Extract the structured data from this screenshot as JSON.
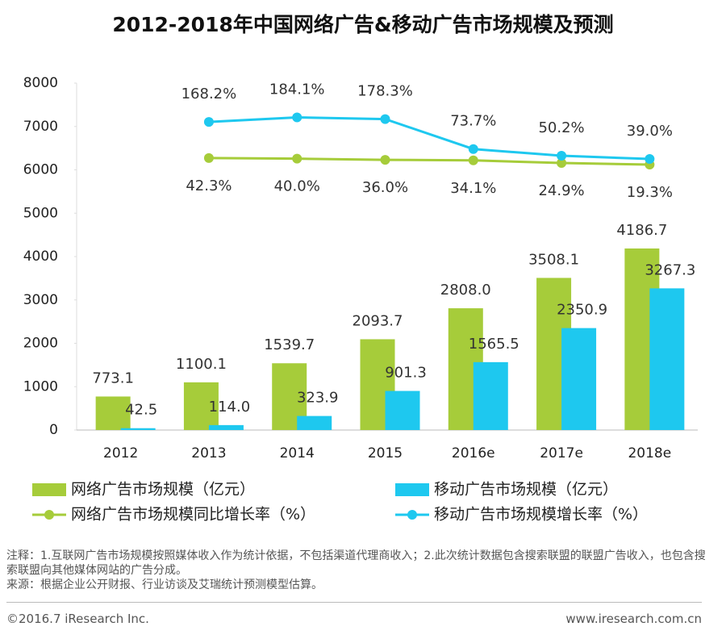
{
  "chart_data": {
    "type": "bar",
    "title": "2012-2018年中国网络广告&移动广告市场规模及预测",
    "categories": [
      "2012",
      "2013",
      "2014",
      "2015",
      "2016e",
      "2017e",
      "2018e"
    ],
    "series": [
      {
        "name": "网络广告市场规模（亿元）",
        "type": "bar",
        "color": "#a6cc3a",
        "values": [
          773.1,
          1100.1,
          1539.7,
          2093.7,
          2808.0,
          3508.1,
          4186.7
        ],
        "value_labels": [
          "773.1",
          "1100.1",
          "1539.7",
          "2093.7",
          "2808.0",
          "3508.1",
          "4186.7"
        ]
      },
      {
        "name": "移动广告市场规模（亿元）",
        "type": "bar",
        "color": "#1ec8ef",
        "values": [
          42.5,
          114.0,
          323.9,
          901.3,
          1565.5,
          2350.9,
          3267.3
        ],
        "value_labels": [
          "42.5",
          "114.0",
          "323.9",
          "901.3",
          "1565.5",
          "2350.9",
          "3267.3"
        ]
      },
      {
        "name": "网络广告市场规模同比增长率（%）",
        "type": "line",
        "axis": "y2",
        "color": "#a6cc3a",
        "values": [
          null,
          42.3,
          40.0,
          36.0,
          34.1,
          24.9,
          19.3
        ],
        "value_labels": [
          null,
          "42.3%",
          "40.0%",
          "36.0%",
          "34.1%",
          "24.9%",
          "19.3%"
        ]
      },
      {
        "name": "移动广告市场规模增长率（%）",
        "type": "line",
        "axis": "y2",
        "color": "#1ec8ef",
        "values": [
          null,
          168.2,
          184.1,
          178.3,
          73.7,
          50.2,
          39.0
        ],
        "value_labels": [
          null,
          "168.2%",
          "184.1%",
          "178.3%",
          "73.7%",
          "50.2%",
          "39.0%"
        ]
      }
    ],
    "ylim": [
      0,
      8000
    ],
    "yticks": [
      0,
      1000,
      2000,
      3000,
      4000,
      5000,
      6000,
      7000,
      8000
    ],
    "y2lim": [
      -908,
      304
    ]
  },
  "notes": [
    "注释：1.互联网广告市场规模按照媒体收入作为统计依据，不包括渠道代理商收入；2.此次统计数据包含搜索联盟的联盟广告收入，也包含搜索联盟向其他媒体网站的广告分成。",
    "来源：根据企业公开财报、行业访谈及艾瑞统计预测模型估算。"
  ],
  "footer": {
    "copyright": "©2016.7 iResearch Inc.",
    "website": "www.iresearch.com.cn"
  }
}
